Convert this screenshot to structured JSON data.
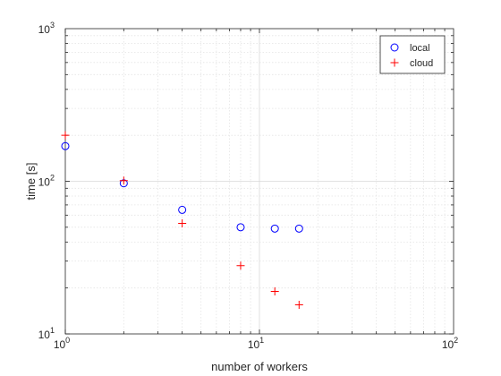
{
  "chart_data": {
    "type": "scatter",
    "xscale": "log",
    "yscale": "log",
    "xlim": [
      1,
      100
    ],
    "ylim": [
      10,
      1000
    ],
    "grid": true,
    "minor_grid": true,
    "legend_position": "top-right",
    "xlabel": "number of workers",
    "ylabel": "time [s]",
    "x_ticks": [
      {
        "value": 1,
        "base": "10",
        "exp": "0"
      },
      {
        "value": 10,
        "base": "10",
        "exp": "1"
      },
      {
        "value": 100,
        "base": "10",
        "exp": "2"
      }
    ],
    "y_ticks": [
      {
        "value": 10,
        "base": "10",
        "exp": "1"
      },
      {
        "value": 100,
        "base": "10",
        "exp": "2"
      },
      {
        "value": 1000,
        "base": "10",
        "exp": "3"
      }
    ],
    "series": [
      {
        "name": "local",
        "marker": "circle",
        "color": "#0000ff",
        "x": [
          1,
          2,
          4,
          8,
          12,
          16
        ],
        "y": [
          170,
          97,
          65,
          50,
          49,
          49
        ]
      },
      {
        "name": "cloud",
        "marker": "plus",
        "color": "#ff0000",
        "x": [
          1,
          2,
          4,
          8,
          12,
          16
        ],
        "y": [
          200,
          101,
          53,
          28,
          19,
          15.5
        ]
      }
    ]
  }
}
